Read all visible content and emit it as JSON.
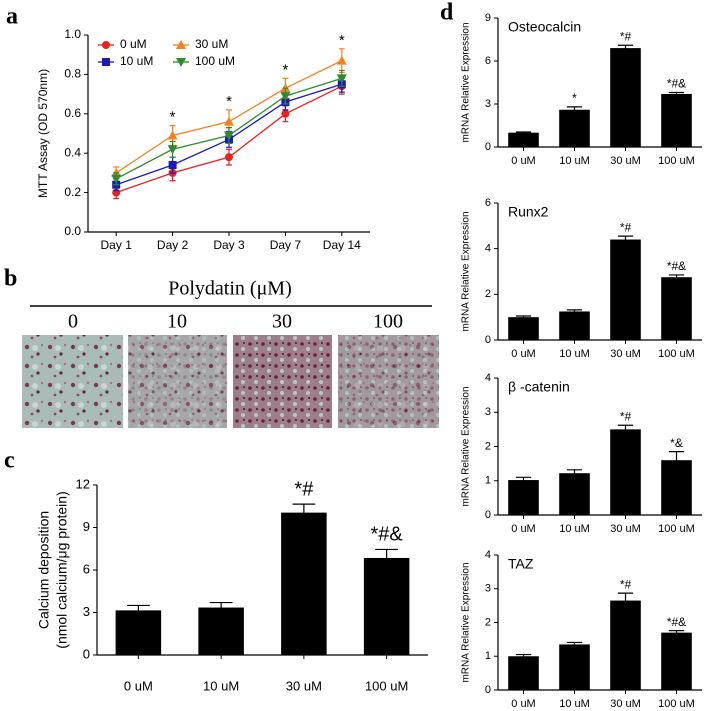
{
  "panel_labels": [
    "a",
    "b",
    "c",
    "d"
  ],
  "image_panel": {
    "title": "Polydatin (μM)",
    "labels": [
      "0",
      "10",
      "30",
      "100"
    ]
  },
  "chart_data": [
    {
      "type": "line",
      "ylabel": "MTT Assay (OD 570nm)",
      "categories": [
        "Day 1",
        "Day 2",
        "Day 3",
        "Day 7",
        "Day 14"
      ],
      "series": [
        {
          "name": "0 uM",
          "color": "#e8211f",
          "marker": "circle",
          "values": [
            0.2,
            0.3,
            0.38,
            0.6,
            0.74
          ],
          "errors": [
            0.03,
            0.04,
            0.04,
            0.04,
            0.04
          ]
        },
        {
          "name": "10 uM",
          "color": "#1a1ab8",
          "marker": "square",
          "values": [
            0.24,
            0.34,
            0.47,
            0.66,
            0.75
          ],
          "errors": [
            0.03,
            0.04,
            0.04,
            0.04,
            0.04
          ]
        },
        {
          "name": "30 uM",
          "color": "#f5821f",
          "marker": "triangle",
          "values": [
            0.3,
            0.49,
            0.56,
            0.73,
            0.87
          ],
          "errors": [
            0.03,
            0.05,
            0.06,
            0.05,
            0.06
          ]
        },
        {
          "name": "100 uM",
          "color": "#2e8b2e",
          "marker": "triangle-down",
          "values": [
            0.27,
            0.42,
            0.49,
            0.69,
            0.78
          ],
          "errors": [
            0.03,
            0.04,
            0.04,
            0.04,
            0.04
          ]
        }
      ],
      "annotations": [
        null,
        "*",
        "*",
        "*",
        "*"
      ],
      "ylim": [
        0,
        1.0
      ],
      "yticks": [
        {
          "value": 0,
          "label": "0.0"
        },
        0.2,
        0.4,
        0.6,
        0.8,
        {
          "value": 1,
          "label": "1.0"
        }
      ],
      "legend": "upper left"
    },
    {
      "type": "bar",
      "ylabel": [
        "Calcium deposition",
        "(nmol calcium/μg protein)"
      ],
      "categories": [
        "0 uM",
        "10 uM",
        "30 uM",
        "100 uM"
      ],
      "values": [
        3.15,
        3.35,
        10.05,
        6.85
      ],
      "errors": [
        0.35,
        0.35,
        0.6,
        0.6
      ],
      "annotations": [
        null,
        null,
        "*#",
        "*#&"
      ],
      "color": "#000000",
      "ylim": [
        0,
        12
      ],
      "yticks": [
        0,
        3,
        6,
        9,
        12
      ]
    },
    {
      "type": "bar",
      "title": "Osteocalcin",
      "ylabel": "mRNA Relative Expression",
      "categories": [
        "0 uM",
        "10 uM",
        "30 uM",
        "100 uM"
      ],
      "values": [
        1.0,
        2.6,
        6.9,
        3.7
      ],
      "errors": [
        0.05,
        0.2,
        0.2,
        0.1
      ],
      "annotations": [
        null,
        "*",
        "*#",
        "*#&"
      ],
      "color": "#000000",
      "ylim": [
        0,
        9
      ],
      "yticks": [
        0,
        3,
        6,
        9
      ]
    },
    {
      "type": "bar",
      "title": "Runx2",
      "ylabel": "mRNA Relative Expression",
      "categories": [
        "0 uM",
        "10 uM",
        "30 uM",
        "100 uM"
      ],
      "values": [
        1.0,
        1.25,
        4.4,
        2.75
      ],
      "errors": [
        0.05,
        0.07,
        0.15,
        0.1
      ],
      "annotations": [
        null,
        null,
        "*#",
        "*#&"
      ],
      "color": "#000000",
      "ylim": [
        0,
        6
      ],
      "yticks": [
        0,
        2,
        4,
        6
      ]
    },
    {
      "type": "bar",
      "title": "β -catenin",
      "ylabel": "mRNA Relative Expression",
      "categories": [
        "0 uM",
        "10 uM",
        "30 uM",
        "100 uM"
      ],
      "values": [
        1.02,
        1.22,
        2.5,
        1.6
      ],
      "errors": [
        0.08,
        0.1,
        0.12,
        0.25
      ],
      "annotations": [
        null,
        null,
        "*#",
        "*&"
      ],
      "color": "#000000",
      "ylim": [
        0,
        4
      ],
      "yticks": [
        0,
        1,
        2,
        3,
        4
      ]
    },
    {
      "type": "bar",
      "title": "TAZ",
      "ylabel": "mRNA Relative Expression",
      "categories": [
        "0 uM",
        "10 uM",
        "30 uM",
        "100 uM"
      ],
      "values": [
        1.0,
        1.35,
        2.65,
        1.7
      ],
      "errors": [
        0.05,
        0.06,
        0.22,
        0.06
      ],
      "annotations": [
        null,
        null,
        "*#",
        "*#&"
      ],
      "color": "#000000",
      "ylim": [
        0,
        4
      ],
      "yticks": [
        0,
        1,
        2,
        3,
        4
      ]
    }
  ]
}
